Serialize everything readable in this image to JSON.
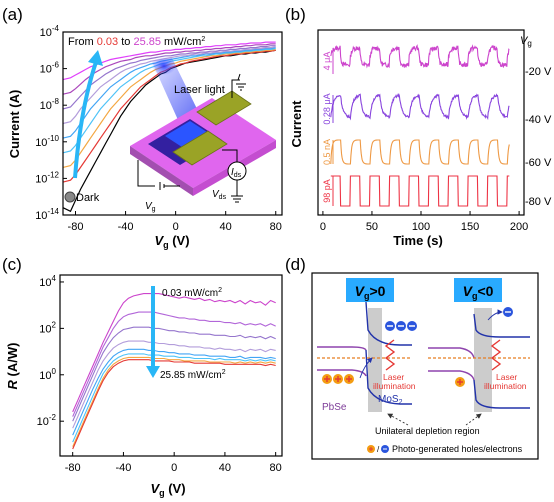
{
  "panels": {
    "a": {
      "label": "(a)",
      "ylabel": "Current (A)",
      "xlabel_main": "V",
      "xlabel_sub": "g",
      "xlabel_unit": " (V)",
      "legend_from": "From ",
      "legend_low": "0.03",
      "legend_to": " to ",
      "legend_high": "25.85",
      "legend_unit": " mW/cm",
      "legend_sup": "2",
      "dark_label": "Dark",
      "laser_label": "Laser light",
      "ids_main": "I",
      "ids_sub": "ds",
      "vds_main": "V",
      "vds_sub": "ds",
      "vg_main": "V",
      "vg_sub": "g"
    },
    "b": {
      "label": "(b)",
      "ylabel": "Current",
      "xlabel": "Time (s)",
      "vg_header_main": "V",
      "vg_header_sub": "g"
    },
    "c": {
      "label": "(c)",
      "ylabel_main": "R",
      "ylabel_unit": " (A/W)",
      "xlabel_main": "V",
      "xlabel_sub": "g",
      "xlabel_unit": " (V)",
      "top_note": "0.03 mW/cm",
      "top_sup": "2",
      "bottom_note": "25.85 mW/cm",
      "bottom_sup": "2"
    },
    "d": {
      "label": "(d)",
      "box1_main": "V",
      "box1_sub": "g",
      "box1_rel": ">0",
      "box2_main": "V",
      "box2_sub": "g",
      "box2_rel": "<0",
      "laser_l1": "Laser",
      "laser_l2": "illumination",
      "pbse": "PbSe",
      "mos2_main": "MoS",
      "mos2_sub": "2",
      "depletion": "Unilateral depletion region",
      "legend": "Photo-generated holes/electrons"
    }
  },
  "colors": {
    "magenta": "#cc44cc",
    "purple": "#8844dd",
    "orange": "#ee9944",
    "red": "#ee3344",
    "blue_arrow": "#29b6f6",
    "box_blue": "#29aaff"
  },
  "chart_data": [
    {
      "type": "line",
      "panel": "a",
      "title": "",
      "xlabel": "Vg (V)",
      "ylabel": "Current (A)",
      "xlim": [
        -90,
        85
      ],
      "ylim": [
        -14,
        -4
      ],
      "yscale": "log",
      "x_ticks": [
        -80,
        -40,
        0,
        40,
        80
      ],
      "y_tick_labels": [
        "10^-14",
        "10^-12",
        "10^-10",
        "10^-8",
        "10^-6",
        "10^-4"
      ],
      "x": [
        -90,
        -84,
        -80,
        -76,
        -72,
        -68,
        -64,
        -60,
        -56,
        -52,
        -48,
        -44,
        -40,
        -36,
        -32,
        -28,
        -24,
        -20,
        -16,
        -12,
        -8,
        -4,
        0,
        4,
        8,
        12,
        16,
        20,
        24,
        28,
        32,
        36,
        40,
        44,
        48,
        52,
        56,
        60,
        64,
        68,
        72,
        76,
        80
      ],
      "series": [
        {
          "name": "Dark",
          "values": [
            -13.6,
            -13.8,
            -13.2,
            -12.6,
            -12.1,
            -11.6,
            -11.1,
            -10.6,
            -10.1,
            -9.6,
            -9.1,
            -8.6,
            -8.2,
            -7.8,
            -7.5,
            -7.2,
            -6.9,
            -6.7,
            -6.5,
            -6.3,
            -6.2,
            -6.0,
            -5.9,
            -5.8,
            -5.7,
            -5.65,
            -5.6,
            -5.55,
            -5.5,
            -5.45,
            -5.4,
            -5.35,
            -5.3,
            -5.3,
            -5.25,
            -5.2,
            -5.2,
            -5.15,
            -5.15,
            -5.1,
            -5.1,
            -5.05,
            -5.0
          ],
          "color": "#000000"
        },
        {
          "values": [
            -12.2,
            -12.1,
            -11.8,
            -11.4,
            -11.0,
            -10.6,
            -10.2,
            -9.8,
            -9.4,
            -9.0,
            -8.6,
            -8.2,
            -7.9,
            -7.6,
            -7.3,
            -7.0,
            -6.8,
            -6.6,
            -6.4,
            -6.2,
            -6.1,
            -5.95,
            -5.85,
            -5.75,
            -5.7,
            -5.6,
            -5.55,
            -5.5,
            -5.45,
            -5.4,
            -5.35,
            -5.3,
            -5.3,
            -5.25,
            -5.2,
            -5.2,
            -5.15,
            -5.15,
            -5.1,
            -5.1,
            -5.05,
            -5.05,
            -5.0
          ],
          "color": "#e53935"
        },
        {
          "values": [
            -11.4,
            -11.3,
            -11.0,
            -10.6,
            -10.2,
            -9.8,
            -9.4,
            -9.0,
            -8.6,
            -8.2,
            -7.9,
            -7.6,
            -7.3,
            -7.0,
            -6.8,
            -6.6,
            -6.4,
            -6.2,
            -6.05,
            -5.95,
            -5.85,
            -5.75,
            -5.7,
            -5.6,
            -5.55,
            -5.5,
            -5.45,
            -5.4,
            -5.35,
            -5.3,
            -5.3,
            -5.25,
            -5.2,
            -5.2,
            -5.15,
            -5.15,
            -5.1,
            -5.1,
            -5.05,
            -5.05,
            -5.0,
            -5.0,
            -4.95
          ],
          "color": "#f4a742"
        },
        {
          "values": [
            -10.6,
            -10.5,
            -10.2,
            -9.8,
            -9.4,
            -9.0,
            -8.6,
            -8.2,
            -7.9,
            -7.6,
            -7.3,
            -7.0,
            -6.8,
            -6.6,
            -6.4,
            -6.2,
            -6.05,
            -5.95,
            -5.85,
            -5.75,
            -5.7,
            -5.6,
            -5.55,
            -5.5,
            -5.45,
            -5.4,
            -5.35,
            -5.3,
            -5.3,
            -5.25,
            -5.2,
            -5.2,
            -5.15,
            -5.15,
            -5.1,
            -5.1,
            -5.05,
            -5.05,
            -5.0,
            -5.0,
            -4.95,
            -4.95,
            -4.9
          ],
          "color": "#4fc3f7"
        },
        {
          "values": [
            -9.8,
            -9.7,
            -9.4,
            -9.0,
            -8.6,
            -8.2,
            -7.9,
            -7.6,
            -7.3,
            -7.0,
            -6.8,
            -6.6,
            -6.4,
            -6.2,
            -6.05,
            -5.95,
            -5.85,
            -5.75,
            -5.7,
            -5.6,
            -5.55,
            -5.5,
            -5.45,
            -5.4,
            -5.35,
            -5.3,
            -5.3,
            -5.25,
            -5.2,
            -5.2,
            -5.15,
            -5.15,
            -5.1,
            -5.1,
            -5.05,
            -5.05,
            -5.0,
            -5.0,
            -4.95,
            -4.95,
            -4.9,
            -4.9,
            -4.85
          ],
          "color": "#42a5f5"
        },
        {
          "values": [
            -9.0,
            -8.9,
            -8.6,
            -8.2,
            -7.9,
            -7.6,
            -7.3,
            -7.0,
            -6.8,
            -6.6,
            -6.4,
            -6.2,
            -6.05,
            -5.95,
            -5.85,
            -5.75,
            -5.7,
            -5.6,
            -5.55,
            -5.5,
            -5.45,
            -5.4,
            -5.35,
            -5.3,
            -5.3,
            -5.25,
            -5.2,
            -5.2,
            -5.15,
            -5.15,
            -5.1,
            -5.1,
            -5.05,
            -5.05,
            -5.0,
            -5.0,
            -4.95,
            -4.95,
            -4.9,
            -4.9,
            -4.85,
            -4.85,
            -4.8
          ],
          "color": "#b39ddb"
        },
        {
          "values": [
            -8.2,
            -8.1,
            -7.8,
            -7.5,
            -7.2,
            -6.9,
            -6.7,
            -6.5,
            -6.3,
            -6.15,
            -6.0,
            -5.9,
            -5.8,
            -5.7,
            -5.65,
            -5.55,
            -5.5,
            -5.45,
            -5.4,
            -5.35,
            -5.3,
            -5.3,
            -5.25,
            -5.2,
            -5.2,
            -5.15,
            -5.15,
            -5.1,
            -5.1,
            -5.05,
            -5.05,
            -5.0,
            -5.0,
            -4.95,
            -4.95,
            -4.9,
            -4.9,
            -4.85,
            -4.85,
            -4.8,
            -4.8,
            -4.75,
            -4.75
          ],
          "color": "#9575cd"
        },
        {
          "values": [
            -7.4,
            -7.3,
            -7.1,
            -6.85,
            -6.6,
            -6.4,
            -6.2,
            -6.05,
            -5.9,
            -5.8,
            -5.7,
            -5.6,
            -5.55,
            -5.5,
            -5.4,
            -5.35,
            -5.3,
            -5.3,
            -5.25,
            -5.2,
            -5.15,
            -5.15,
            -5.1,
            -5.1,
            -5.05,
            -5.05,
            -5.0,
            -5.0,
            -4.95,
            -4.95,
            -4.9,
            -4.9,
            -4.85,
            -4.85,
            -4.8,
            -4.8,
            -4.75,
            -4.75,
            -4.7,
            -4.7,
            -4.7,
            -4.65,
            -4.65
          ],
          "color": "#ab47bc"
        },
        {
          "values": [
            -6.6,
            -6.5,
            -6.35,
            -6.2,
            -6.05,
            -5.9,
            -5.8,
            -5.7,
            -5.6,
            -5.5,
            -5.45,
            -5.4,
            -5.35,
            -5.3,
            -5.25,
            -5.2,
            -5.15,
            -5.1,
            -5.1,
            -5.05,
            -5.0,
            -5.0,
            -4.95,
            -4.95,
            -4.9,
            -4.9,
            -4.85,
            -4.85,
            -4.8,
            -4.8,
            -4.75,
            -4.75,
            -4.7,
            -4.7,
            -4.7,
            -4.65,
            -4.65,
            -4.6,
            -4.6,
            -4.6,
            -4.55,
            -4.55,
            -4.55
          ],
          "color": "#e040fb"
        }
      ]
    },
    {
      "type": "line",
      "panel": "b",
      "xlabel": "Time (s)",
      "ylabel": "Current",
      "xlim": [
        -5,
        205
      ],
      "x_ticks": [
        0,
        50,
        100,
        150,
        200
      ],
      "period_s": 20,
      "on_s": 10,
      "cycles": 9,
      "t_start": 8,
      "t_end": 190,
      "series": [
        {
          "name": "-20 V",
          "scale_label": "4 μA",
          "color": "#cc44cc",
          "shape": "saturating"
        },
        {
          "name": "-40 V",
          "scale_label": "0.28 μA",
          "color": "#8844dd",
          "shape": "exponential"
        },
        {
          "name": "-60 V",
          "scale_label": "0.5 nA",
          "color": "#ee9944",
          "shape": "fast-exponential"
        },
        {
          "name": "-80 V",
          "scale_label": "98 pA",
          "color": "#ee3344",
          "shape": "square"
        }
      ]
    },
    {
      "type": "line",
      "panel": "c",
      "xlabel": "Vg (V)",
      "ylabel": "R (A/W)",
      "xlim": [
        -90,
        85
      ],
      "ylim": [
        -3.5,
        4.3
      ],
      "yscale": "log",
      "x_ticks": [
        -80,
        -40,
        0,
        40,
        80
      ],
      "y_tick_labels": [
        "10^-2",
        "10^0",
        "10^2",
        "10^4"
      ],
      "x": [
        -80,
        -76,
        -72,
        -68,
        -64,
        -60,
        -56,
        -52,
        -48,
        -44,
        -40,
        -36,
        -32,
        -28,
        -24,
        -20,
        -16,
        -12,
        -8,
        -4,
        0,
        4,
        8,
        12,
        16,
        20,
        24,
        28,
        32,
        36,
        40,
        44,
        48,
        52,
        56,
        60,
        64,
        68,
        72,
        76,
        80
      ],
      "series": [
        {
          "name": "0.03 mW/cm2",
          "color": "#cc44cc",
          "values": [
            -1.6,
            -1.1,
            -0.6,
            -0.1,
            0.4,
            0.9,
            1.4,
            1.85,
            2.3,
            2.75,
            3.1,
            3.3,
            3.4,
            3.45,
            3.5,
            3.5,
            3.5,
            3.5,
            3.45,
            3.4,
            3.35,
            3.3,
            3.35,
            3.3,
            3.25,
            3.3,
            3.2,
            3.25,
            3.15,
            3.2,
            3.15,
            3.2,
            3.1,
            3.2,
            3.05,
            3.2,
            3.1,
            3.15,
            3.0,
            3.2,
            3.1
          ]
        },
        {
          "color": "#b266d9",
          "values": [
            -1.8,
            -1.3,
            -0.8,
            -0.3,
            0.2,
            0.7,
            1.2,
            1.6,
            2.0,
            2.3,
            2.5,
            2.6,
            2.65,
            2.7,
            2.7,
            2.7,
            2.7,
            2.65,
            2.6,
            2.55,
            2.5,
            2.45,
            2.45,
            2.4,
            2.4,
            2.35,
            2.35,
            2.3,
            2.3,
            2.3,
            2.25,
            2.25,
            2.2,
            2.25,
            2.15,
            2.2,
            2.15,
            2.2,
            2.1,
            2.2,
            2.1
          ]
        },
        {
          "color": "#9575cd",
          "values": [
            -2.0,
            -1.5,
            -1.0,
            -0.5,
            0.0,
            0.5,
            0.95,
            1.3,
            1.6,
            1.8,
            1.95,
            2.0,
            2.05,
            2.05,
            2.05,
            2.05,
            2.0,
            2.0,
            1.95,
            1.9,
            1.9,
            1.85,
            1.85,
            1.8,
            1.8,
            1.75,
            1.75,
            1.75,
            1.7,
            1.7,
            1.7,
            1.65,
            1.65,
            1.7,
            1.6,
            1.65,
            1.6,
            1.65,
            1.55,
            1.65,
            1.55
          ]
        },
        {
          "color": "#b39ddb",
          "values": [
            -2.3,
            -1.8,
            -1.3,
            -0.8,
            -0.3,
            0.2,
            0.6,
            0.9,
            1.15,
            1.3,
            1.4,
            1.45,
            1.45,
            1.45,
            1.45,
            1.4,
            1.4,
            1.35,
            1.35,
            1.3,
            1.3,
            1.25,
            1.25,
            1.2,
            1.2,
            1.2,
            1.15,
            1.15,
            1.1,
            1.15,
            1.1,
            1.1,
            1.05,
            1.1,
            1.0,
            1.1,
            1.05,
            1.1,
            1.0,
            1.1,
            1.05
          ]
        },
        {
          "color": "#42a5f5",
          "values": [
            -2.6,
            -2.1,
            -1.6,
            -1.1,
            -0.6,
            -0.15,
            0.25,
            0.55,
            0.8,
            0.95,
            1.05,
            1.1,
            1.1,
            1.1,
            1.1,
            1.05,
            1.05,
            1.0,
            1.0,
            0.95,
            0.95,
            0.9,
            0.9,
            0.9,
            0.85,
            0.85,
            0.85,
            0.8,
            0.8,
            0.8,
            0.8,
            0.75,
            0.75,
            0.8,
            0.7,
            0.75,
            0.75,
            0.75,
            0.7,
            0.75,
            0.7
          ]
        },
        {
          "color": "#4fc3f7",
          "values": [
            -2.9,
            -2.4,
            -1.9,
            -1.4,
            -0.9,
            -0.4,
            0.05,
            0.35,
            0.6,
            0.75,
            0.85,
            0.9,
            0.9,
            0.9,
            0.9,
            0.85,
            0.85,
            0.85,
            0.8,
            0.8,
            0.8,
            0.75,
            0.75,
            0.75,
            0.7,
            0.7,
            0.7,
            0.7,
            0.65,
            0.7,
            0.65,
            0.65,
            0.65,
            0.65,
            0.6,
            0.65,
            0.6,
            0.65,
            0.6,
            0.65,
            0.6
          ]
        },
        {
          "color": "#f4a742",
          "values": [
            -3.1,
            -2.6,
            -2.1,
            -1.6,
            -1.1,
            -0.6,
            -0.15,
            0.2,
            0.45,
            0.6,
            0.7,
            0.75,
            0.75,
            0.75,
            0.75,
            0.75,
            0.7,
            0.7,
            0.7,
            0.65,
            0.65,
            0.65,
            0.6,
            0.6,
            0.6,
            0.6,
            0.6,
            0.55,
            0.55,
            0.55,
            0.55,
            0.55,
            0.5,
            0.55,
            0.5,
            0.55,
            0.5,
            0.55,
            0.5,
            0.55,
            0.5
          ]
        },
        {
          "name": "25.85 mW/cm2",
          "color": "#e53935",
          "values": [
            -3.2,
            -2.7,
            -2.2,
            -1.7,
            -1.2,
            -0.7,
            -0.25,
            0.1,
            0.35,
            0.5,
            0.6,
            0.65,
            0.65,
            0.65,
            0.65,
            0.65,
            0.6,
            0.6,
            0.6,
            0.6,
            0.55,
            0.55,
            0.55,
            0.55,
            0.5,
            0.5,
            0.5,
            0.5,
            0.5,
            0.5,
            0.45,
            0.45,
            0.45,
            0.45,
            0.45,
            0.45,
            0.45,
            0.45,
            0.4,
            0.45,
            0.4
          ]
        }
      ]
    }
  ]
}
